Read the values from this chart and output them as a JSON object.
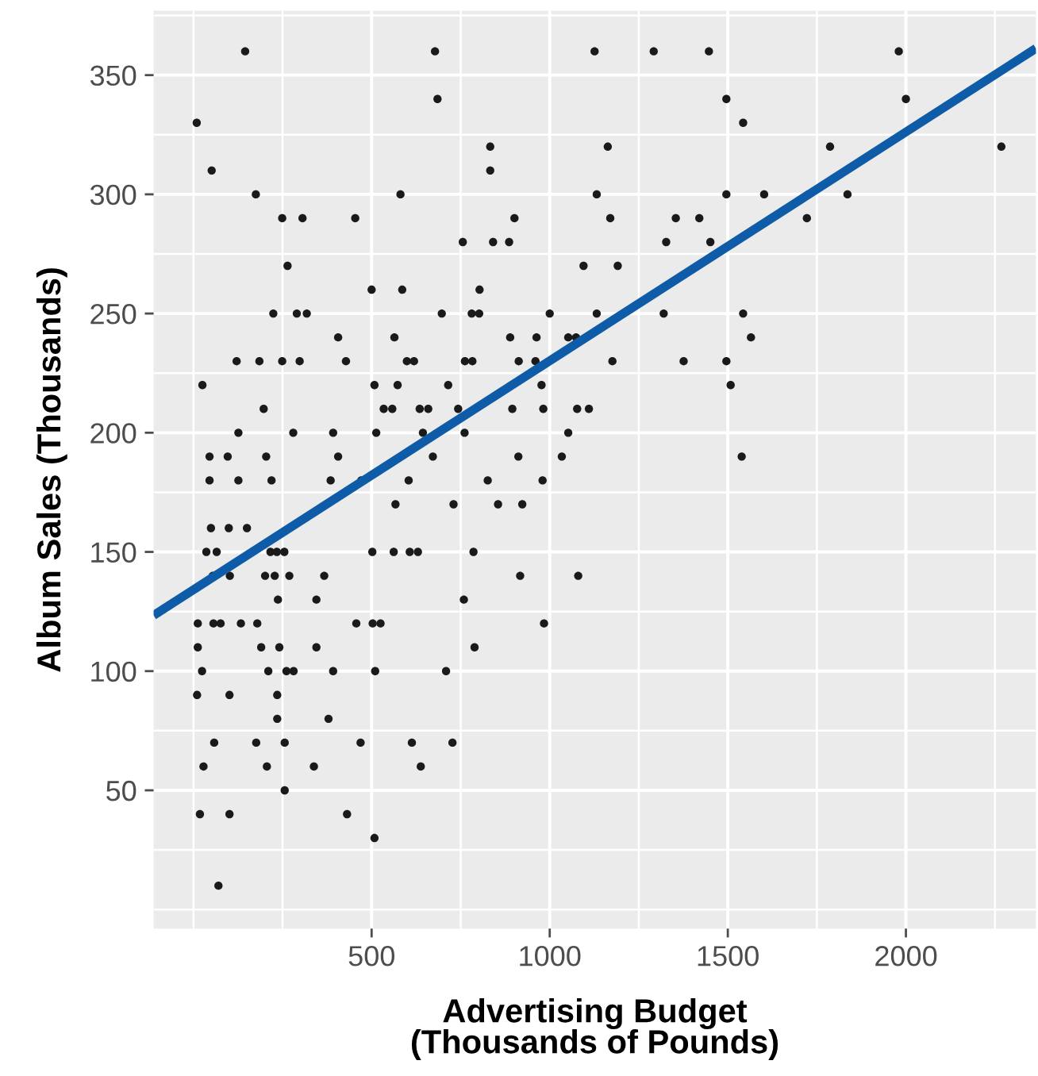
{
  "chart_data": {
    "type": "scatter",
    "xlabel": "Advertising Budget\n(Thousands of Pounds)",
    "ylabel": "Album Sales (Thousands)",
    "xlim": [
      -112,
      2365
    ],
    "ylim": [
      -8,
      377
    ],
    "xticks": [
      500,
      1000,
      1500,
      2000
    ],
    "yticks": [
      50,
      100,
      150,
      200,
      250,
      300,
      350
    ],
    "grid": true,
    "series": [
      {
        "color": "#1a1a1a",
        "marker": "circle",
        "x": [
          145,
          678,
          1126,
          1292,
          1447,
          1980,
          685,
          1496,
          2000,
          9,
          1543,
          833,
          1163,
          1787,
          2268,
          51,
          833,
          175,
          581,
          1132,
          1496,
          1602,
          1836,
          249,
          306,
          454,
          901,
          1170,
          1354,
          1420,
          1722,
          756,
          841,
          886,
          1327,
          1451,
          264,
          1095,
          1191,
          500,
          586,
          803,
          224,
          290,
          318,
          697,
          781,
          802,
          1000,
          1132,
          1320,
          1543,
          406,
          564,
          889,
          963,
          1052,
          1074,
          1565,
          121,
          185,
          249,
          298,
          428,
          599,
          619,
          762,
          783,
          913,
          960,
          1176,
          1376,
          1496,
          25,
          508,
          573,
          715,
          977,
          1508,
          197,
          534,
          558,
          635,
          659,
          743,
          895,
          982,
          1077,
          1110,
          126,
          280,
          392,
          513,
          644,
          761,
          1052,
          45,
          96,
          204,
          406,
          672,
          912,
          1034,
          1539,
          45,
          126,
          219,
          385,
          471,
          604,
          826,
          980,
          567,
          730,
          855,
          923,
          49,
          99,
          150,
          36,
          65,
          216,
          234,
          255,
          502,
          562,
          607,
          630,
          786,
          54,
          102,
          201,
          228,
          269,
          367,
          917,
          1080,
          237,
          345,
          759,
          12,
          56,
          76,
          133,
          179,
          457,
          503,
          525,
          984,
          12,
          190,
          241,
          345,
          789,
          24,
          210,
          261,
          281,
          392,
          510,
          709,
          10,
          101,
          235,
          235,
          379,
          58,
          176,
          256,
          469,
          613,
          727,
          28,
          206,
          338,
          638,
          256,
          18,
          101,
          431,
          508,
          70
        ],
        "values": [
          360,
          360,
          360,
          360,
          360,
          360,
          340,
          340,
          340,
          330,
          330,
          320,
          320,
          320,
          320,
          310,
          310,
          300,
          300,
          300,
          300,
          300,
          300,
          290,
          290,
          290,
          290,
          290,
          290,
          290,
          290,
          280,
          280,
          280,
          280,
          280,
          270,
          270,
          270,
          260,
          260,
          260,
          250,
          250,
          250,
          250,
          250,
          250,
          250,
          250,
          250,
          250,
          240,
          240,
          240,
          240,
          240,
          240,
          240,
          230,
          230,
          230,
          230,
          230,
          230,
          230,
          230,
          230,
          230,
          230,
          230,
          230,
          230,
          220,
          220,
          220,
          220,
          220,
          220,
          210,
          210,
          210,
          210,
          210,
          210,
          210,
          210,
          210,
          210,
          200,
          200,
          200,
          200,
          200,
          200,
          200,
          190,
          190,
          190,
          190,
          190,
          190,
          190,
          190,
          180,
          180,
          180,
          180,
          180,
          180,
          180,
          180,
          170,
          170,
          170,
          170,
          160,
          160,
          160,
          150,
          150,
          150,
          150,
          150,
          150,
          150,
          150,
          150,
          150,
          140,
          140,
          140,
          140,
          140,
          140,
          140,
          140,
          130,
          130,
          130,
          120,
          120,
          120,
          120,
          120,
          120,
          120,
          120,
          120,
          110,
          110,
          110,
          110,
          110,
          100,
          100,
          100,
          100,
          100,
          100,
          100,
          90,
          90,
          90,
          80,
          80,
          70,
          70,
          70,
          70,
          70,
          70,
          60,
          60,
          60,
          60,
          50,
          40,
          40,
          40,
          30,
          10
        ]
      },
      {
        "type": "line",
        "color": "#0e5ca8",
        "x": [
          -112,
          2365
        ],
        "values": [
          123.4,
          361.2
        ]
      }
    ]
  }
}
